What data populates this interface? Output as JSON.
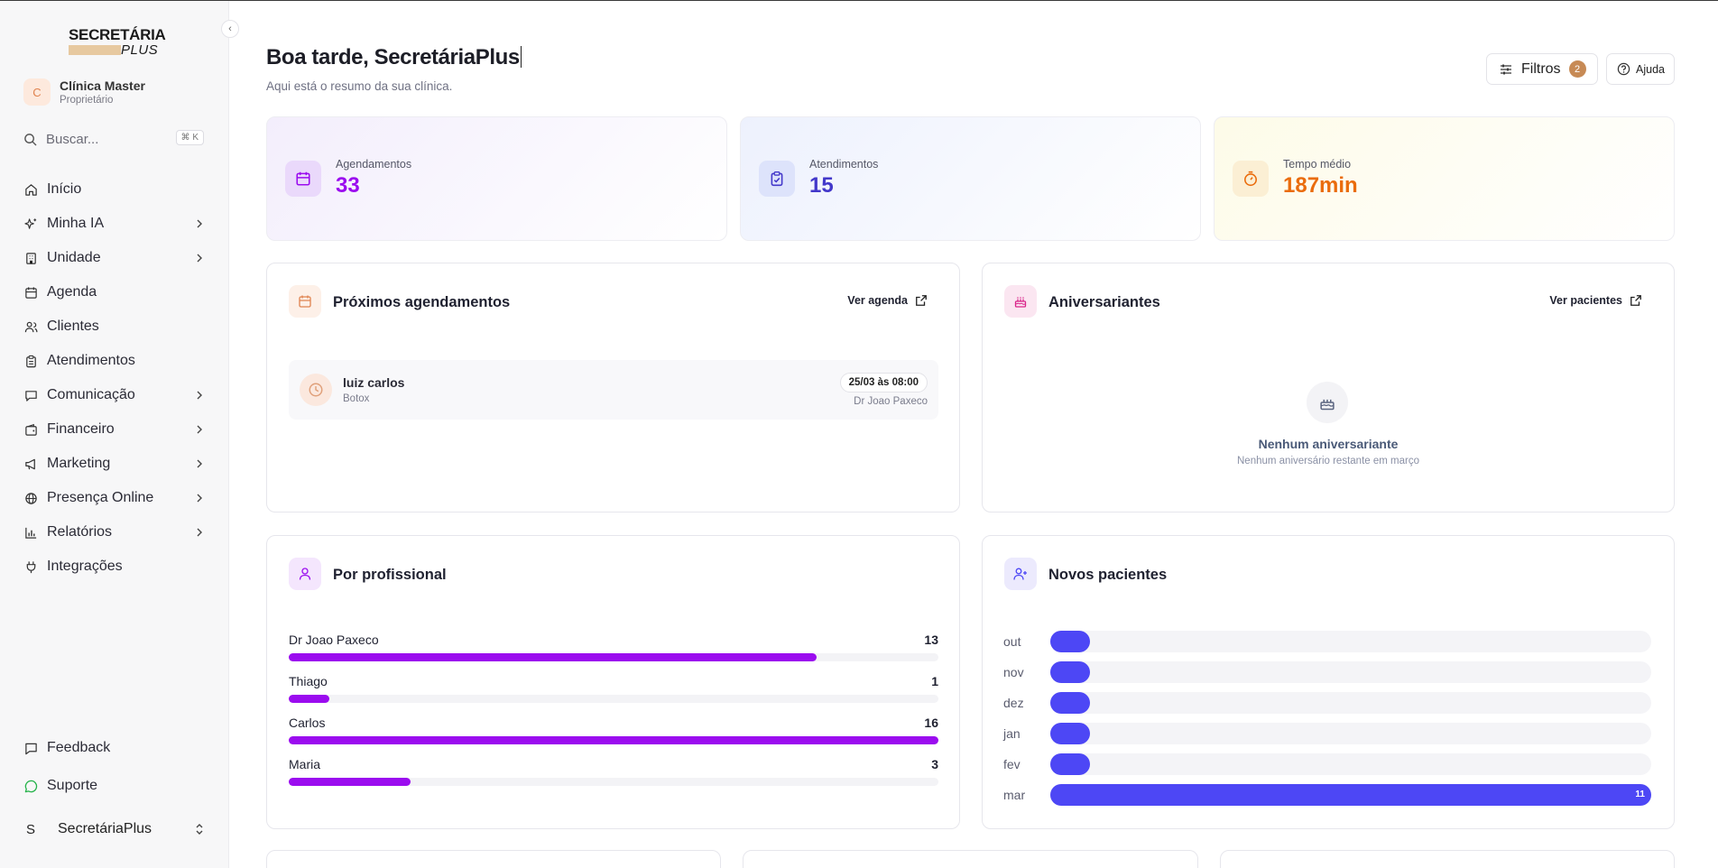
{
  "sidebar": {
    "logo": {
      "line1": "SECRETÁRIA",
      "line2": "PLUS"
    },
    "account": {
      "initial": "C",
      "name": "Clínica Master",
      "role": "Proprietário"
    },
    "search": {
      "placeholder": "Buscar...",
      "shortcut": "⌘ K"
    },
    "nav": [
      {
        "label": "Início",
        "icon": "home-icon",
        "expandable": false
      },
      {
        "label": "Minha IA",
        "icon": "sparkles-icon",
        "expandable": true
      },
      {
        "label": "Unidade",
        "icon": "building-icon",
        "expandable": true
      },
      {
        "label": "Agenda",
        "icon": "calendar-icon",
        "expandable": false
      },
      {
        "label": "Clientes",
        "icon": "users-icon",
        "expandable": false
      },
      {
        "label": "Atendimentos",
        "icon": "clipboard-icon",
        "expandable": false
      },
      {
        "label": "Comunicação",
        "icon": "message-icon",
        "expandable": true
      },
      {
        "label": "Financeiro",
        "icon": "wallet-icon",
        "expandable": true
      },
      {
        "label": "Marketing",
        "icon": "megaphone-icon",
        "expandable": true
      },
      {
        "label": "Presença Online",
        "icon": "globe-icon",
        "expandable": true
      },
      {
        "label": "Relatórios",
        "icon": "bar-chart-icon",
        "expandable": true
      },
      {
        "label": "Integrações",
        "icon": "plug-icon",
        "expandable": false
      }
    ],
    "bottom": [
      {
        "label": "Feedback",
        "icon": "feedback-icon"
      },
      {
        "label": "Suporte",
        "icon": "whatsapp-icon"
      }
    ],
    "user": {
      "initial": "S",
      "name": "SecretáriaPlus"
    }
  },
  "header": {
    "greeting": "Boa tarde, SecretáriaPlus",
    "subtitle": "Aqui está o resumo da sua clínica.",
    "filters_label": "Filtros",
    "filters_count": "2",
    "help_label": "Ajuda"
  },
  "stats": [
    {
      "label": "Agendamentos",
      "value": "33",
      "icon": "calendar-icon",
      "accent": "#9b0cef",
      "bg": "#f3eefc",
      "icon_bg": "#ead9fb"
    },
    {
      "label": "Atendimentos",
      "value": "15",
      "icon": "clipboard-check-icon",
      "accent": "#4338ca",
      "bg": "#edf1fd",
      "icon_bg": "#dde3fb"
    },
    {
      "label": "Tempo médio",
      "value": "187min",
      "icon": "timer-icon",
      "accent": "#ea6c0c",
      "bg": "#fdfbe8",
      "icon_bg": "#fbefd4"
    }
  ],
  "upcoming": {
    "title": "Próximos agendamentos",
    "link": "Ver agenda",
    "items": [
      {
        "patient": "luiz carlos",
        "service": "Botox",
        "when": "25/03 às 08:00",
        "doctor": "Dr Joao Paxeco"
      }
    ]
  },
  "birthdays": {
    "title": "Aniversariantes",
    "link": "Ver pacientes",
    "empty_title": "Nenhum aniversariante",
    "empty_sub": "Nenhum aniversário restante em março"
  },
  "by_professional": {
    "title": "Por profissional",
    "max": 16,
    "rows": [
      {
        "name": "Dr Joao Paxeco",
        "count": 13
      },
      {
        "name": "Thiago",
        "count": 1
      },
      {
        "name": "Carlos",
        "count": 16
      },
      {
        "name": "Maria",
        "count": 3
      }
    ]
  },
  "new_patients": {
    "title": "Novos pacientes",
    "max": 11,
    "rows": [
      {
        "month": "out",
        "value": 0
      },
      {
        "month": "nov",
        "value": 0
      },
      {
        "month": "dez",
        "value": 0
      },
      {
        "month": "jan",
        "value": 0
      },
      {
        "month": "fev",
        "value": 0
      },
      {
        "month": "mar",
        "value": 11,
        "label": "11"
      }
    ]
  }
}
